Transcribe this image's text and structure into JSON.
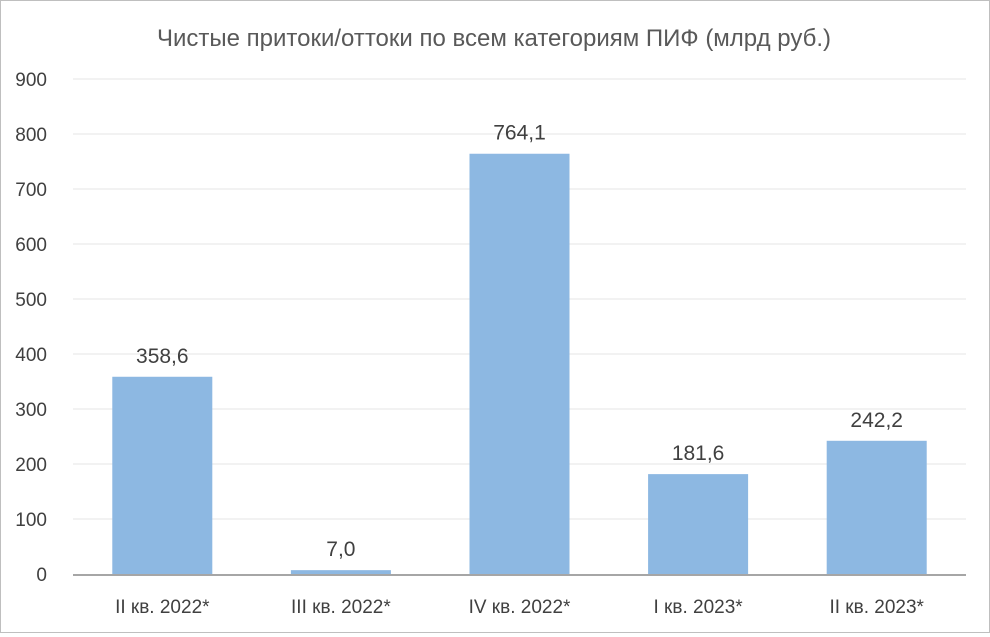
{
  "chart_data": {
    "type": "bar",
    "title": "Чистые притоки/оттоки по всем категориям ПИФ (млрд руб.)",
    "categories": [
      "II кв. 2022*",
      "III кв. 2022*",
      "IV кв. 2022*",
      "I кв. 2023*",
      "II кв. 2023*"
    ],
    "values": [
      358.6,
      7.0,
      764.1,
      181.6,
      242.2
    ],
    "data_labels": [
      "358,6",
      "7,0",
      "764,1",
      "181,6",
      "242,2"
    ],
    "ylim": [
      0,
      900
    ],
    "yticks": [
      0,
      100,
      200,
      300,
      400,
      500,
      600,
      700,
      800,
      900
    ],
    "grid": true,
    "legend": "none",
    "colors": {
      "bar": "#8db8e2",
      "grid": "#e6e6e6",
      "axis": "#a6a6a6",
      "text": "#404040",
      "title": "#595959"
    }
  }
}
